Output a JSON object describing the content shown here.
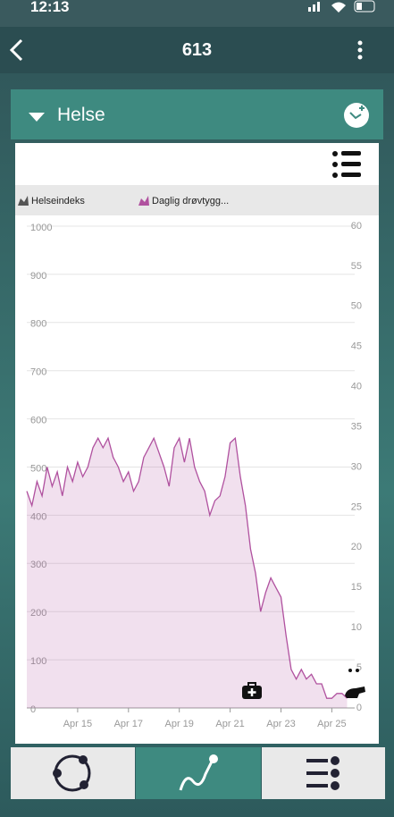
{
  "status_bar": {
    "time": "12:13"
  },
  "header": {
    "title": "613"
  },
  "panel": {
    "title": "Helse"
  },
  "chart_data": {
    "type": "area",
    "x": [
      13.0,
      13.2,
      13.4,
      13.6,
      13.8,
      14.0,
      14.2,
      14.4,
      14.6,
      14.8,
      15.0,
      15.2,
      15.4,
      15.6,
      15.8,
      16.0,
      16.2,
      16.4,
      16.6,
      16.8,
      17.0,
      17.2,
      17.4,
      17.6,
      17.8,
      18.0,
      18.2,
      18.4,
      18.6,
      18.8,
      19.0,
      19.2,
      19.4,
      19.6,
      19.8,
      20.0,
      20.2,
      20.4,
      20.6,
      20.8,
      21.0,
      21.2,
      21.4,
      21.6,
      21.8,
      22.0,
      22.2,
      22.4,
      22.6,
      22.8,
      23.0,
      23.2,
      23.4,
      23.6,
      23.8,
      24.0,
      24.2,
      24.4,
      24.6,
      24.8,
      25.0,
      25.2,
      25.4,
      25.6
    ],
    "series": [
      {
        "name": "Helseindeks",
        "color": "#555555",
        "axis": "y2",
        "values": [
          null,
          null,
          null,
          null,
          null,
          null,
          null,
          null,
          null,
          null,
          null,
          null,
          null,
          null,
          null,
          null,
          null,
          null,
          null,
          null,
          null,
          null,
          null,
          null,
          null,
          null,
          null,
          null,
          null,
          null,
          null,
          null,
          null,
          null,
          null,
          null,
          null,
          null,
          null,
          null,
          null,
          null,
          null,
          null,
          null,
          null,
          null,
          null,
          null,
          null,
          null,
          null,
          null,
          null,
          null,
          null,
          null,
          null,
          null,
          null,
          null,
          null,
          null,
          null
        ]
      },
      {
        "name": "Daglig drøvtygg...",
        "color": "#b0519f",
        "values": [
          450,
          420,
          470,
          440,
          500,
          460,
          490,
          440,
          500,
          470,
          510,
          480,
          500,
          540,
          560,
          540,
          560,
          520,
          500,
          470,
          490,
          450,
          470,
          520,
          540,
          560,
          530,
          500,
          460,
          540,
          560,
          510,
          560,
          500,
          470,
          450,
          400,
          430,
          440,
          480,
          550,
          560,
          480,
          420,
          330,
          280,
          200,
          240,
          270,
          250,
          230,
          150,
          80,
          60,
          80,
          60,
          70,
          50,
          50,
          20,
          20,
          30,
          30,
          20
        ]
      }
    ],
    "xlim": [
      13.0,
      25.9
    ],
    "xticks": [
      {
        "value": 15,
        "label": "Apr 15"
      },
      {
        "value": 17,
        "label": "Apr 17"
      },
      {
        "value": 19,
        "label": "Apr 19"
      },
      {
        "value": 21,
        "label": "Apr 21"
      },
      {
        "value": 23,
        "label": "Apr 23"
      },
      {
        "value": 25,
        "label": "Apr 25"
      }
    ],
    "ylim": [
      0,
      1000
    ],
    "yticks": [
      0,
      100,
      200,
      300,
      400,
      500,
      600,
      700,
      800,
      900,
      1000
    ],
    "y2lim": [
      0,
      60
    ],
    "y2ticks": [
      0,
      5,
      10,
      15,
      20,
      25,
      30,
      35,
      40,
      45,
      50,
      55,
      60
    ],
    "grid": true
  }
}
